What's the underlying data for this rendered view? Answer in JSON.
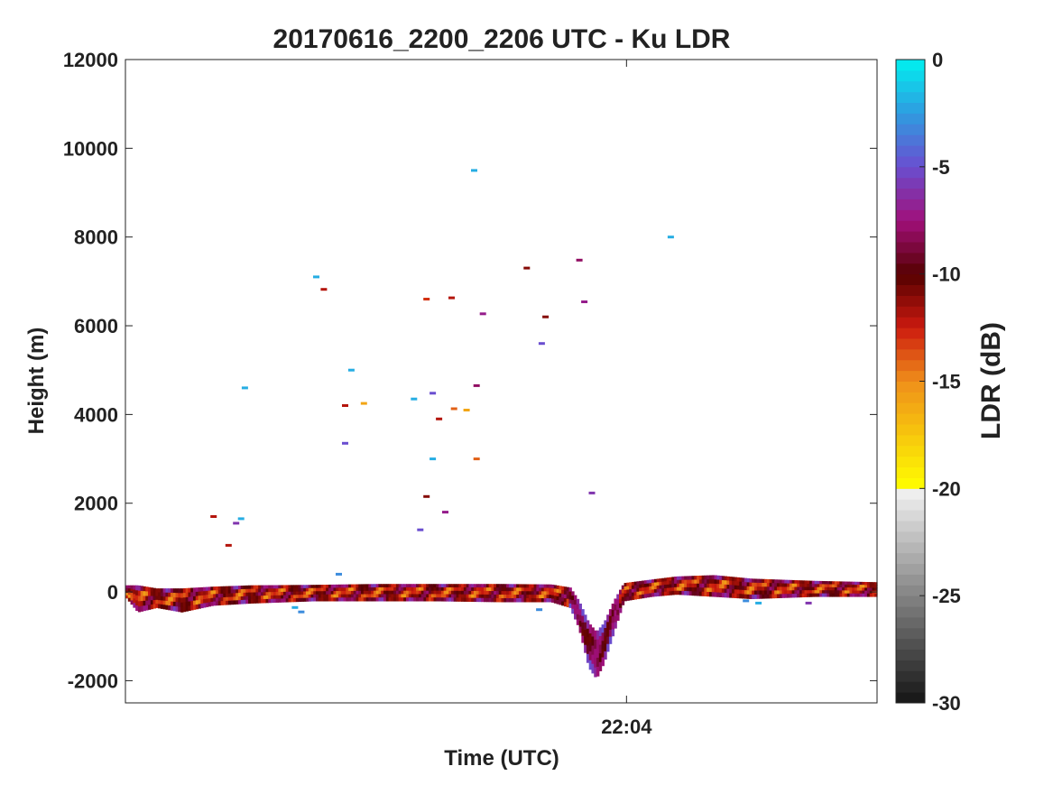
{
  "chart_data": {
    "type": "heatmap",
    "title": "20170616_2200_2206 UTC - Ku LDR",
    "xlabel": "Time (UTC)",
    "ylabel": "Height (m)",
    "colorbar_label": "LDR (dB)",
    "x_range_minutes": [
      0,
      6
    ],
    "x_ticks": [
      {
        "t": 4,
        "label": "22:04"
      }
    ],
    "ylim": [
      -2500,
      12000
    ],
    "y_ticks": [
      -2000,
      0,
      2000,
      4000,
      6000,
      8000,
      10000,
      12000
    ],
    "colorbar_range": [
      -30,
      0
    ],
    "colorbar_ticks": [
      -30,
      -25,
      -20,
      -15,
      -10,
      -5,
      0
    ],
    "grid": false,
    "colormap_stops": [
      {
        "v": -30,
        "c": "#141414"
      },
      {
        "v": -20.2,
        "c": "#efefef"
      },
      {
        "v": -20,
        "c": "#ffff00"
      },
      {
        "v": -15,
        "c": "#ef8f1a"
      },
      {
        "v": -12.5,
        "c": "#cc1a0f"
      },
      {
        "v": -10,
        "c": "#550000"
      },
      {
        "v": -7.5,
        "c": "#a0107a"
      },
      {
        "v": -5,
        "c": "#6a4ed0"
      },
      {
        "v": -2.5,
        "c": "#2f9ce0"
      },
      {
        "v": 0,
        "c": "#00f0f0"
      }
    ],
    "surface_band": [
      {
        "t": 0.0,
        "top": 150,
        "bottom": -100
      },
      {
        "t": 0.1,
        "top": 150,
        "bottom": -450
      },
      {
        "t": 0.25,
        "top": 80,
        "bottom": -350
      },
      {
        "t": 0.45,
        "top": 80,
        "bottom": -450
      },
      {
        "t": 0.7,
        "top": 120,
        "bottom": -300
      },
      {
        "t": 1.0,
        "top": 150,
        "bottom": -250
      },
      {
        "t": 1.5,
        "top": 160,
        "bottom": -200
      },
      {
        "t": 2.0,
        "top": 180,
        "bottom": -200
      },
      {
        "t": 2.5,
        "top": 180,
        "bottom": -200
      },
      {
        "t": 3.0,
        "top": 180,
        "bottom": -220
      },
      {
        "t": 3.4,
        "top": 170,
        "bottom": -220
      },
      {
        "t": 3.55,
        "top": 100,
        "bottom": -350
      },
      {
        "t": 3.62,
        "top": -200,
        "bottom": -800
      },
      {
        "t": 3.7,
        "top": -700,
        "bottom": -1700
      },
      {
        "t": 3.76,
        "top": -900,
        "bottom": -1950
      },
      {
        "t": 3.82,
        "top": -700,
        "bottom": -1600
      },
      {
        "t": 3.9,
        "top": -200,
        "bottom": -900
      },
      {
        "t": 3.98,
        "top": 200,
        "bottom": -200
      },
      {
        "t": 4.2,
        "top": 280,
        "bottom": -100
      },
      {
        "t": 4.4,
        "top": 350,
        "bottom": -50
      },
      {
        "t": 4.7,
        "top": 380,
        "bottom": -100
      },
      {
        "t": 5.0,
        "top": 300,
        "bottom": -150
      },
      {
        "t": 5.5,
        "top": 250,
        "bottom": -100
      },
      {
        "t": 6.0,
        "top": 220,
        "bottom": -100
      }
    ],
    "scatter_echoes": [
      {
        "t": 1.52,
        "h": 7100,
        "ldr": -2
      },
      {
        "t": 1.58,
        "h": 6820,
        "ldr": -12
      },
      {
        "t": 0.95,
        "h": 4600,
        "ldr": -2
      },
      {
        "t": 0.7,
        "h": 1700,
        "ldr": -12
      },
      {
        "t": 0.88,
        "h": 1550,
        "ldr": -6
      },
      {
        "t": 0.92,
        "h": 1650,
        "ldr": -2
      },
      {
        "t": 0.82,
        "h": 1050,
        "ldr": -12
      },
      {
        "t": 1.8,
        "h": 5000,
        "ldr": -2
      },
      {
        "t": 1.75,
        "h": 4200,
        "ldr": -12
      },
      {
        "t": 1.9,
        "h": 4250,
        "ldr": -16
      },
      {
        "t": 1.75,
        "h": 3350,
        "ldr": -5
      },
      {
        "t": 2.4,
        "h": 6600,
        "ldr": -13
      },
      {
        "t": 2.6,
        "h": 6630,
        "ldr": -12
      },
      {
        "t": 2.85,
        "h": 6270,
        "ldr": -7
      },
      {
        "t": 2.8,
        "h": 4650,
        "ldr": -8
      },
      {
        "t": 2.45,
        "h": 4480,
        "ldr": -5
      },
      {
        "t": 2.3,
        "h": 4350,
        "ldr": -2
      },
      {
        "t": 2.72,
        "h": 4100,
        "ldr": -16
      },
      {
        "t": 2.62,
        "h": 4130,
        "ldr": -14
      },
      {
        "t": 2.5,
        "h": 3900,
        "ldr": -12
      },
      {
        "t": 2.45,
        "h": 3000,
        "ldr": -2
      },
      {
        "t": 2.8,
        "h": 3000,
        "ldr": -14
      },
      {
        "t": 2.4,
        "h": 2150,
        "ldr": -11
      },
      {
        "t": 2.55,
        "h": 1800,
        "ldr": -7
      },
      {
        "t": 2.35,
        "h": 1400,
        "ldr": -5
      },
      {
        "t": 2.78,
        "h": 9500,
        "ldr": -2
      },
      {
        "t": 3.2,
        "h": 7300,
        "ldr": -11
      },
      {
        "t": 3.35,
        "h": 6200,
        "ldr": -11
      },
      {
        "t": 3.32,
        "h": 5600,
        "ldr": -5
      },
      {
        "t": 3.62,
        "h": 7480,
        "ldr": -8
      },
      {
        "t": 3.66,
        "h": 6540,
        "ldr": -7
      },
      {
        "t": 3.72,
        "h": 2230,
        "ldr": -6
      },
      {
        "t": 4.35,
        "h": 8000,
        "ldr": -2
      },
      {
        "t": 3.3,
        "h": -400,
        "ldr": -3
      },
      {
        "t": 1.4,
        "h": -450,
        "ldr": -3
      },
      {
        "t": 1.35,
        "h": -350,
        "ldr": -2
      },
      {
        "t": 1.7,
        "h": 400,
        "ldr": -3
      },
      {
        "t": 4.95,
        "h": -200,
        "ldr": -3
      },
      {
        "t": 5.05,
        "h": -250,
        "ldr": -2
      },
      {
        "t": 5.45,
        "h": -250,
        "ldr": -6
      }
    ]
  }
}
